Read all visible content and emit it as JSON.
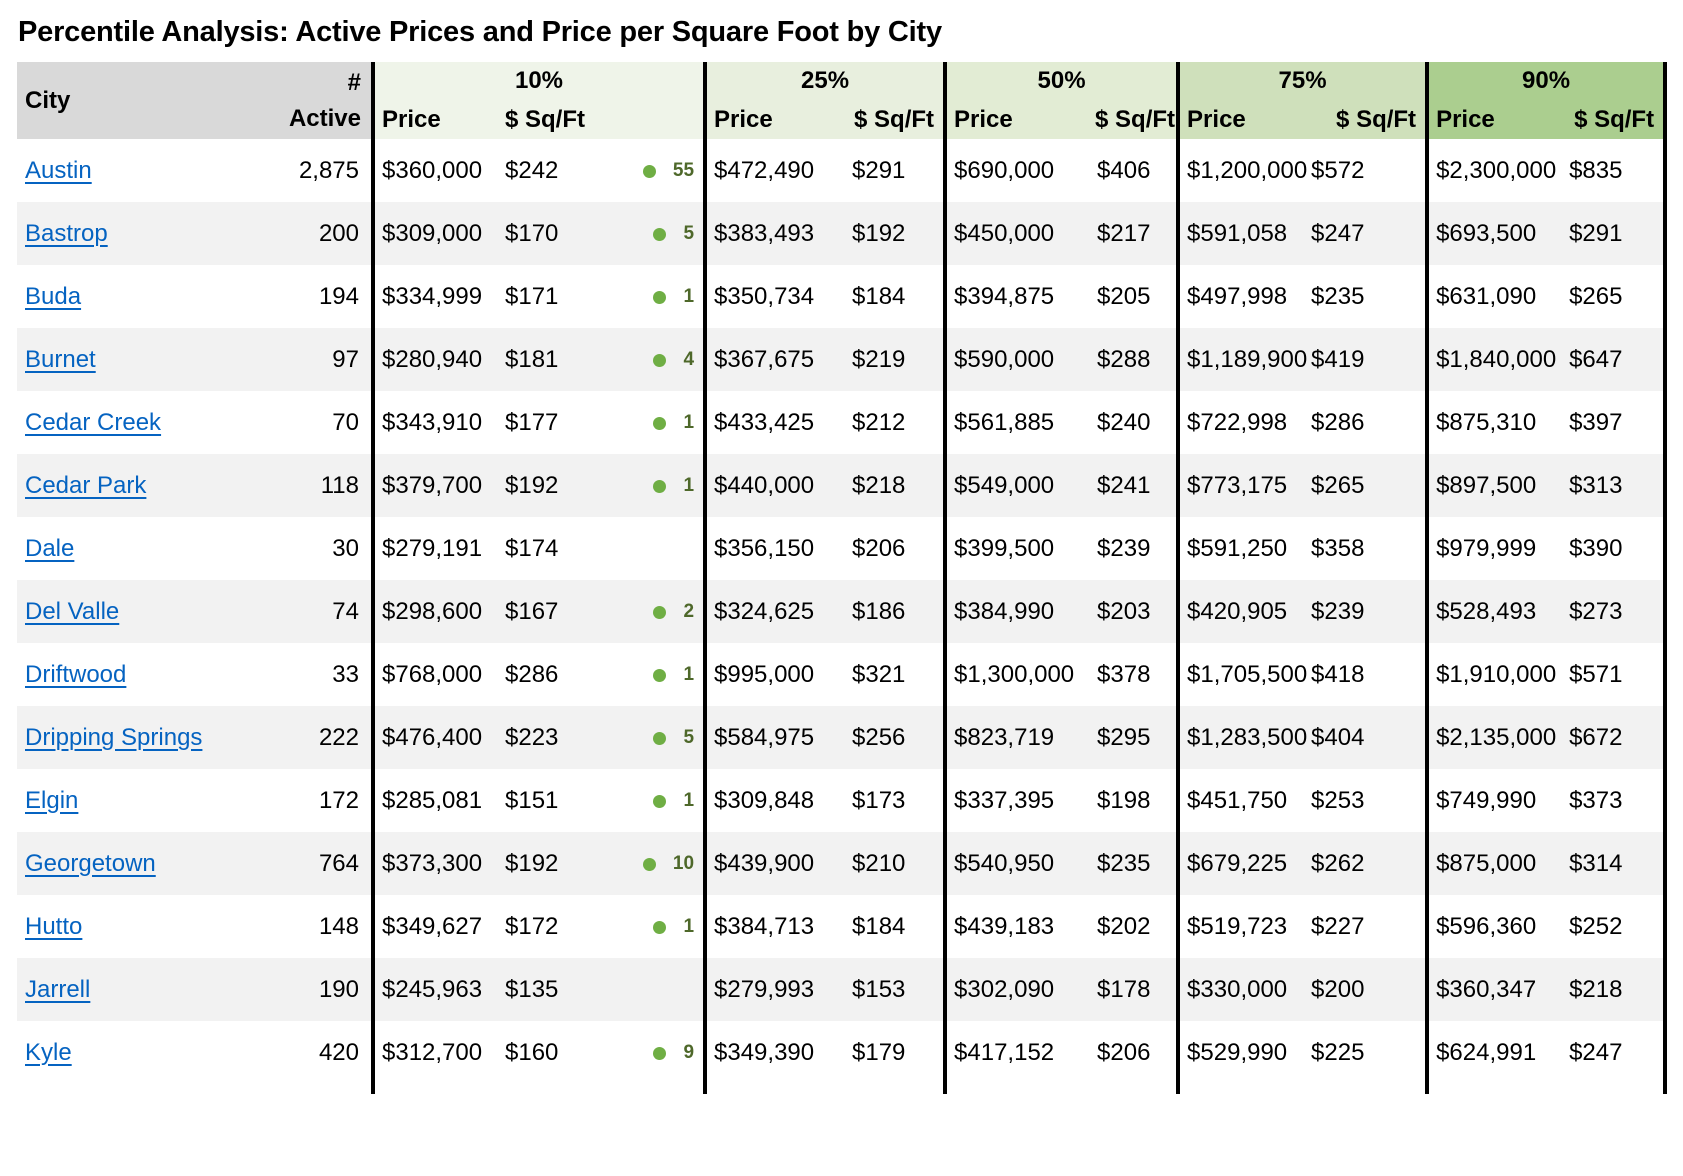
{
  "title": "Percentile Analysis: Active Prices and Price per Square Foot by City",
  "colors": {
    "header_gray": "#d9d9d9",
    "group_10": "#eff4e9",
    "group_25": "#e8efde",
    "group_50": "#e2ecd4",
    "group_75": "#cfe0bb",
    "group_90": "#abce8f",
    "row_alt": "#f2f2f2",
    "dot_green": "#6fae44",
    "dot_count_text": "#4e682a",
    "link_blue": "#0563c1",
    "separator": "#000000"
  },
  "table": {
    "headers": {
      "city": "City",
      "active_line1": "#",
      "active_line2": "Active",
      "price": "Price",
      "sqft": "$ Sq/Ft",
      "groups": {
        "p10": "10%",
        "p25": "25%",
        "p50": "50%",
        "p75": "75%",
        "p90": "90%"
      }
    },
    "rows": [
      {
        "city": "Austin",
        "active": "2,875",
        "p10": "$360,000",
        "s10": "$242",
        "dot10": "55",
        "p25": "$472,490",
        "s25": "$291",
        "p50": "$690,000",
        "s50": "$406",
        "p75": "$1,200,000",
        "s75": "$572",
        "p90": "$2,300,000",
        "s90": "$835"
      },
      {
        "city": "Bastrop",
        "active": "200",
        "p10": "$309,000",
        "s10": "$170",
        "dot10": "5",
        "p25": "$383,493",
        "s25": "$192",
        "p50": "$450,000",
        "s50": "$217",
        "p75": "$591,058",
        "s75": "$247",
        "p90": "$693,500",
        "s90": "$291"
      },
      {
        "city": "Buda",
        "active": "194",
        "p10": "$334,999",
        "s10": "$171",
        "dot10": "1",
        "p25": "$350,734",
        "s25": "$184",
        "p50": "$394,875",
        "s50": "$205",
        "p75": "$497,998",
        "s75": "$235",
        "p90": "$631,090",
        "s90": "$265"
      },
      {
        "city": "Burnet",
        "active": "97",
        "p10": "$280,940",
        "s10": "$181",
        "dot10": "4",
        "p25": "$367,675",
        "s25": "$219",
        "p50": "$590,000",
        "s50": "$288",
        "p75": "$1,189,900",
        "s75": "$419",
        "p90": "$1,840,000",
        "s90": "$647"
      },
      {
        "city": "Cedar Creek",
        "active": "70",
        "p10": "$343,910",
        "s10": "$177",
        "dot10": "1",
        "p25": "$433,425",
        "s25": "$212",
        "p50": "$561,885",
        "s50": "$240",
        "p75": "$722,998",
        "s75": "$286",
        "p90": "$875,310",
        "s90": "$397"
      },
      {
        "city": "Cedar Park",
        "active": "118",
        "p10": "$379,700",
        "s10": "$192",
        "dot10": "1",
        "p25": "$440,000",
        "s25": "$218",
        "p50": "$549,000",
        "s50": "$241",
        "p75": "$773,175",
        "s75": "$265",
        "p90": "$897,500",
        "s90": "$313"
      },
      {
        "city": "Dale",
        "active": "30",
        "p10": "$279,191",
        "s10": "$174",
        "dot10": "",
        "p25": "$356,150",
        "s25": "$206",
        "p50": "$399,500",
        "s50": "$239",
        "p75": "$591,250",
        "s75": "$358",
        "p90": "$979,999",
        "s90": "$390"
      },
      {
        "city": "Del Valle",
        "active": "74",
        "p10": "$298,600",
        "s10": "$167",
        "dot10": "2",
        "p25": "$324,625",
        "s25": "$186",
        "p50": "$384,990",
        "s50": "$203",
        "p75": "$420,905",
        "s75": "$239",
        "p90": "$528,493",
        "s90": "$273"
      },
      {
        "city": "Driftwood",
        "active": "33",
        "p10": "$768,000",
        "s10": "$286",
        "dot10": "1",
        "p25": "$995,000",
        "s25": "$321",
        "p50": "$1,300,000",
        "s50": "$378",
        "p75": "$1,705,500",
        "s75": "$418",
        "p90": "$1,910,000",
        "s90": "$571"
      },
      {
        "city": "Dripping Springs",
        "active": "222",
        "p10": "$476,400",
        "s10": "$223",
        "dot10": "5",
        "p25": "$584,975",
        "s25": "$256",
        "p50": "$823,719",
        "s50": "$295",
        "p75": "$1,283,500",
        "s75": "$404",
        "p90": "$2,135,000",
        "s90": "$672"
      },
      {
        "city": "Elgin",
        "active": "172",
        "p10": "$285,081",
        "s10": "$151",
        "dot10": "1",
        "p25": "$309,848",
        "s25": "$173",
        "p50": "$337,395",
        "s50": "$198",
        "p75": "$451,750",
        "s75": "$253",
        "p90": "$749,990",
        "s90": "$373"
      },
      {
        "city": "Georgetown",
        "active": "764",
        "p10": "$373,300",
        "s10": "$192",
        "dot10": "10",
        "p25": "$439,900",
        "s25": "$210",
        "p50": "$540,950",
        "s50": "$235",
        "p75": "$679,225",
        "s75": "$262",
        "p90": "$875,000",
        "s90": "$314"
      },
      {
        "city": "Hutto",
        "active": "148",
        "p10": "$349,627",
        "s10": "$172",
        "dot10": "1",
        "p25": "$384,713",
        "s25": "$184",
        "p50": "$439,183",
        "s50": "$202",
        "p75": "$519,723",
        "s75": "$227",
        "p90": "$596,360",
        "s90": "$252"
      },
      {
        "city": "Jarrell",
        "active": "190",
        "p10": "$245,963",
        "s10": "$135",
        "dot10": "",
        "p25": "$279,993",
        "s25": "$153",
        "p50": "$302,090",
        "s50": "$178",
        "p75": "$330,000",
        "s75": "$200",
        "p90": "$360,347",
        "s90": "$218"
      },
      {
        "city": "Kyle",
        "active": "420",
        "p10": "$312,700",
        "s10": "$160",
        "dot10": "9",
        "p25": "$349,390",
        "s25": "$179",
        "p50": "$417,152",
        "s50": "$206",
        "p75": "$529,990",
        "s75": "$225",
        "p90": "$624,991",
        "s90": "$247"
      }
    ]
  }
}
